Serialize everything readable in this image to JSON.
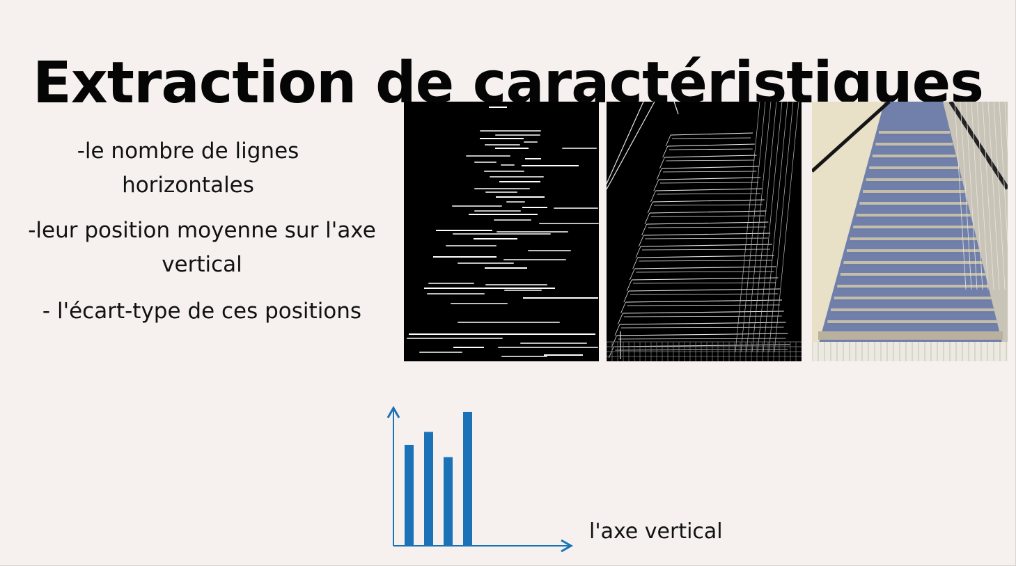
{
  "title": "Extraction de caractéristiques",
  "bullets": [
    {
      "line1": "-le nombre de lignes",
      "line2": "horizontales"
    },
    {
      "line1": "-leur position moyenne sur l'axe",
      "line2": "vertical"
    },
    {
      "line1": "- l'écart-type de ces positions"
    }
  ],
  "images": {
    "horizontal_lines": "detected-horizontal-lines-image",
    "edges": "edge-detection-image",
    "photo": "staircase-photo-image"
  },
  "chart_data": {
    "type": "bar",
    "values": [
      148,
      167,
      130,
      196
    ],
    "categories": [
      "",
      "",
      "",
      ""
    ],
    "xlabel": "l'axe vertical",
    "ylabel": "",
    "ylim": [
      0,
      200
    ],
    "grid": false,
    "color": "#1a73b7"
  },
  "colors": {
    "background": "#f6f1ef",
    "title": "#050505",
    "chart_bar": "#1a73b7",
    "chart_axis": "#1a73b7"
  }
}
